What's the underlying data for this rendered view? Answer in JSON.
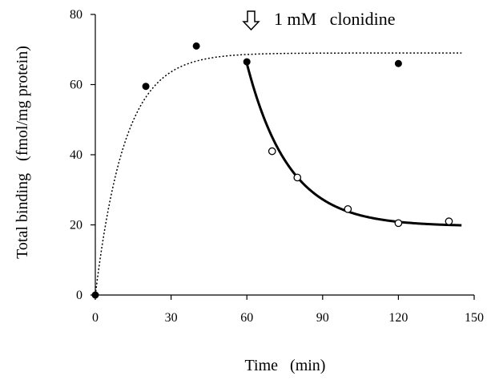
{
  "chart_data": {
    "type": "scatter",
    "xlabel": "Time   (min)",
    "ylabel": "Total binding   (fmol/mg protein)",
    "xlim": [
      0,
      150
    ],
    "ylim": [
      0,
      80
    ],
    "x_ticks": [
      0,
      30,
      60,
      90,
      120,
      150
    ],
    "y_ticks": [
      0,
      20,
      40,
      60,
      80
    ],
    "grid": false,
    "annotation": {
      "text": "1 mM   clonidine",
      "arrow_icon": "hollow-down-arrow-icon",
      "at_x": 60
    },
    "series": [
      {
        "marker": "filled-circle",
        "points": [
          [
            0,
            0
          ],
          [
            20,
            59.5
          ],
          [
            40,
            71
          ],
          [
            60,
            66.5
          ],
          [
            120,
            66
          ]
        ]
      },
      {
        "marker": "open-circle",
        "points": [
          [
            70,
            41
          ],
          [
            80,
            33.5
          ],
          [
            100,
            24.5
          ],
          [
            120,
            20.5
          ],
          [
            140,
            21
          ]
        ]
      }
    ],
    "fits": [
      {
        "style": "dotted",
        "model": "association",
        "plateau": 69,
        "k": 0.085,
        "x_range": [
          0,
          145
        ]
      },
      {
        "style": "solid",
        "model": "dissociation",
        "start_x": 60,
        "start_y": 66,
        "plateau": 19.6,
        "k": 0.06,
        "x_range": [
          60,
          145
        ]
      }
    ]
  }
}
